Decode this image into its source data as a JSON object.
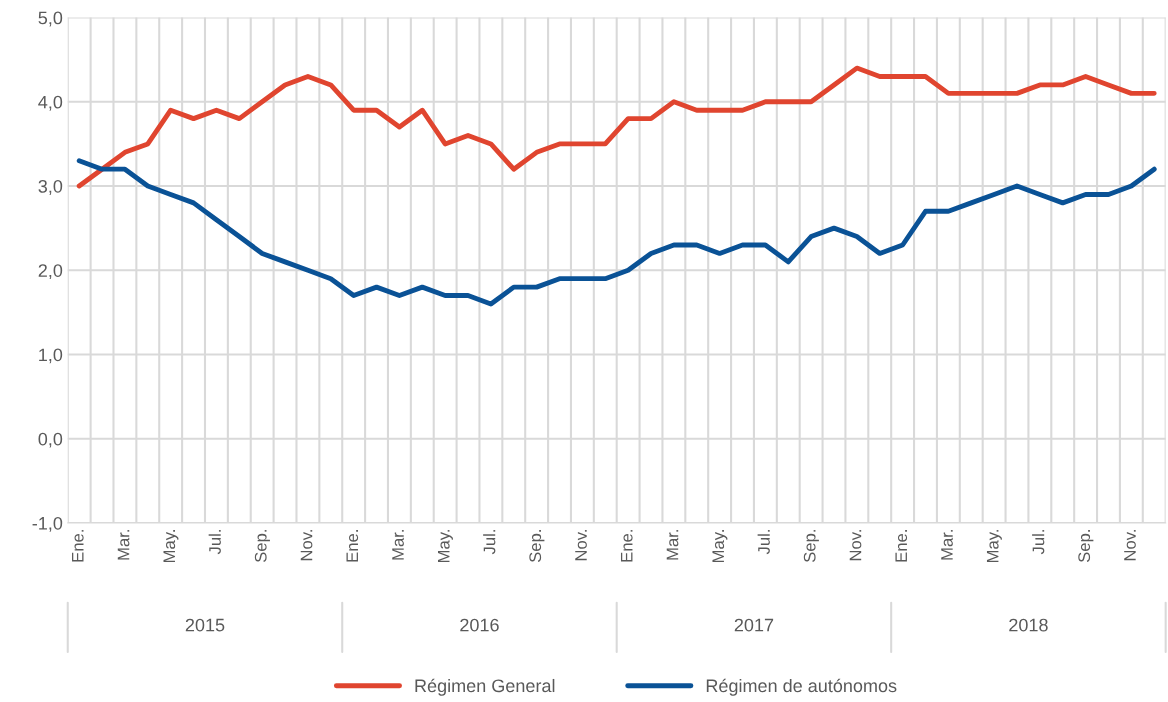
{
  "chart_data": {
    "type": "line",
    "categories": [
      "Ene.",
      null,
      "Mar.",
      null,
      "May.",
      null,
      "Jul.",
      null,
      "Sep.",
      null,
      "Nov.",
      null,
      "Ene.",
      null,
      "Mar.",
      null,
      "May.",
      null,
      "Jul.",
      null,
      "Sep.",
      null,
      "Nov.",
      null,
      "Ene.",
      null,
      "Mar.",
      null,
      "May.",
      null,
      "Jul.",
      null,
      "Sep.",
      null,
      "Nov.",
      null,
      "Ene.",
      null,
      "Mar.",
      null,
      "May.",
      null,
      "Jul.",
      null,
      "Sep.",
      null,
      "Nov.",
      null
    ],
    "series": [
      {
        "name": "Régimen General",
        "color": "#e0452f",
        "values": [
          3.0,
          3.2,
          3.4,
          3.5,
          3.9,
          3.8,
          3.9,
          3.8,
          4.0,
          4.2,
          4.3,
          4.2,
          3.9,
          3.9,
          3.7,
          3.9,
          3.5,
          3.6,
          3.5,
          3.2,
          3.4,
          3.5,
          3.5,
          3.5,
          3.8,
          3.8,
          4.0,
          3.9,
          3.9,
          3.9,
          4.0,
          4.0,
          4.0,
          4.2,
          4.4,
          4.3,
          4.3,
          4.3,
          4.1,
          4.1,
          4.1,
          4.1,
          4.2,
          4.2,
          4.3,
          4.2,
          4.1,
          4.1
        ]
      },
      {
        "name": "Régimen de autónomos",
        "color": "#0a5296",
        "values": [
          3.3,
          3.2,
          3.2,
          3.0,
          2.9,
          2.8,
          2.6,
          2.4,
          2.2,
          2.1,
          2.0,
          1.9,
          1.7,
          1.8,
          1.7,
          1.8,
          1.7,
          1.7,
          1.6,
          1.8,
          1.8,
          1.9,
          1.9,
          1.9,
          2.0,
          2.2,
          2.3,
          2.3,
          2.2,
          2.3,
          2.3,
          2.1,
          2.4,
          2.5,
          2.4,
          2.2,
          2.3,
          2.7,
          2.7,
          2.8,
          2.9,
          3.0,
          2.9,
          2.8,
          2.9,
          2.9,
          3.0,
          3.2
        ]
      }
    ],
    "ylim": [
      -1,
      5
    ],
    "yticks": [
      {
        "value": -1,
        "label": "-1,0"
      },
      {
        "value": 0,
        "label": "0,0"
      },
      {
        "value": 1,
        "label": "1,0"
      },
      {
        "value": 2,
        "label": "2,0"
      },
      {
        "value": 3,
        "label": "3,0"
      },
      {
        "value": 4,
        "label": "4,0"
      },
      {
        "value": 5,
        "label": "5,0"
      }
    ],
    "annotations": [
      "2015",
      "2016",
      "2017",
      "2018"
    ],
    "grid": true,
    "legend": "bottom",
    "marker": "none",
    "line_style": "solid"
  }
}
